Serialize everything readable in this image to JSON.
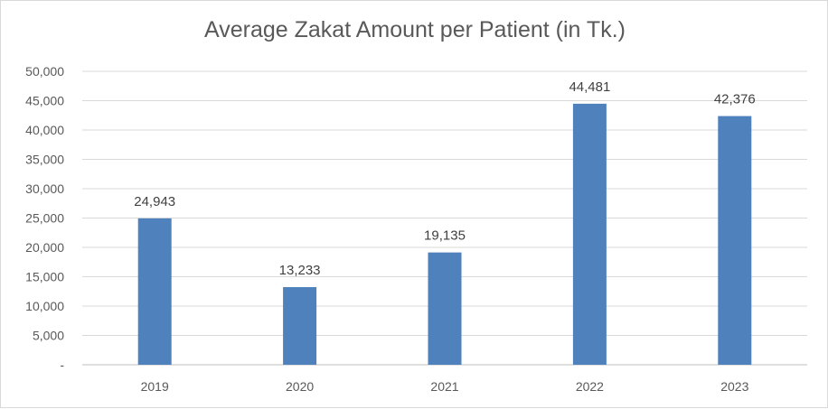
{
  "chart_data": {
    "type": "bar",
    "title": "Average Zakat Amount per Patient (in Tk.)",
    "xlabel": "",
    "ylabel": "",
    "categories": [
      "2019",
      "2020",
      "2021",
      "2022",
      "2023"
    ],
    "values": [
      24943,
      13233,
      19135,
      44481,
      42376
    ],
    "data_labels": [
      "24,943",
      "13,233",
      "19,135",
      "44,481",
      "42,376"
    ],
    "ylim": [
      0,
      50000
    ],
    "y_ticks": [
      0,
      5000,
      10000,
      15000,
      20000,
      25000,
      30000,
      35000,
      40000,
      45000,
      50000
    ],
    "y_tick_labels": [
      "-",
      "5,000",
      "10,000",
      "15,000",
      "20,000",
      "25,000",
      "30,000",
      "35,000",
      "40,000",
      "45,000",
      "50,000"
    ],
    "grid": true,
    "legend": "none",
    "colors": {
      "bar": "#4f81bd",
      "grid": "#d9d9d9",
      "axis": "#bfbfbf"
    }
  }
}
